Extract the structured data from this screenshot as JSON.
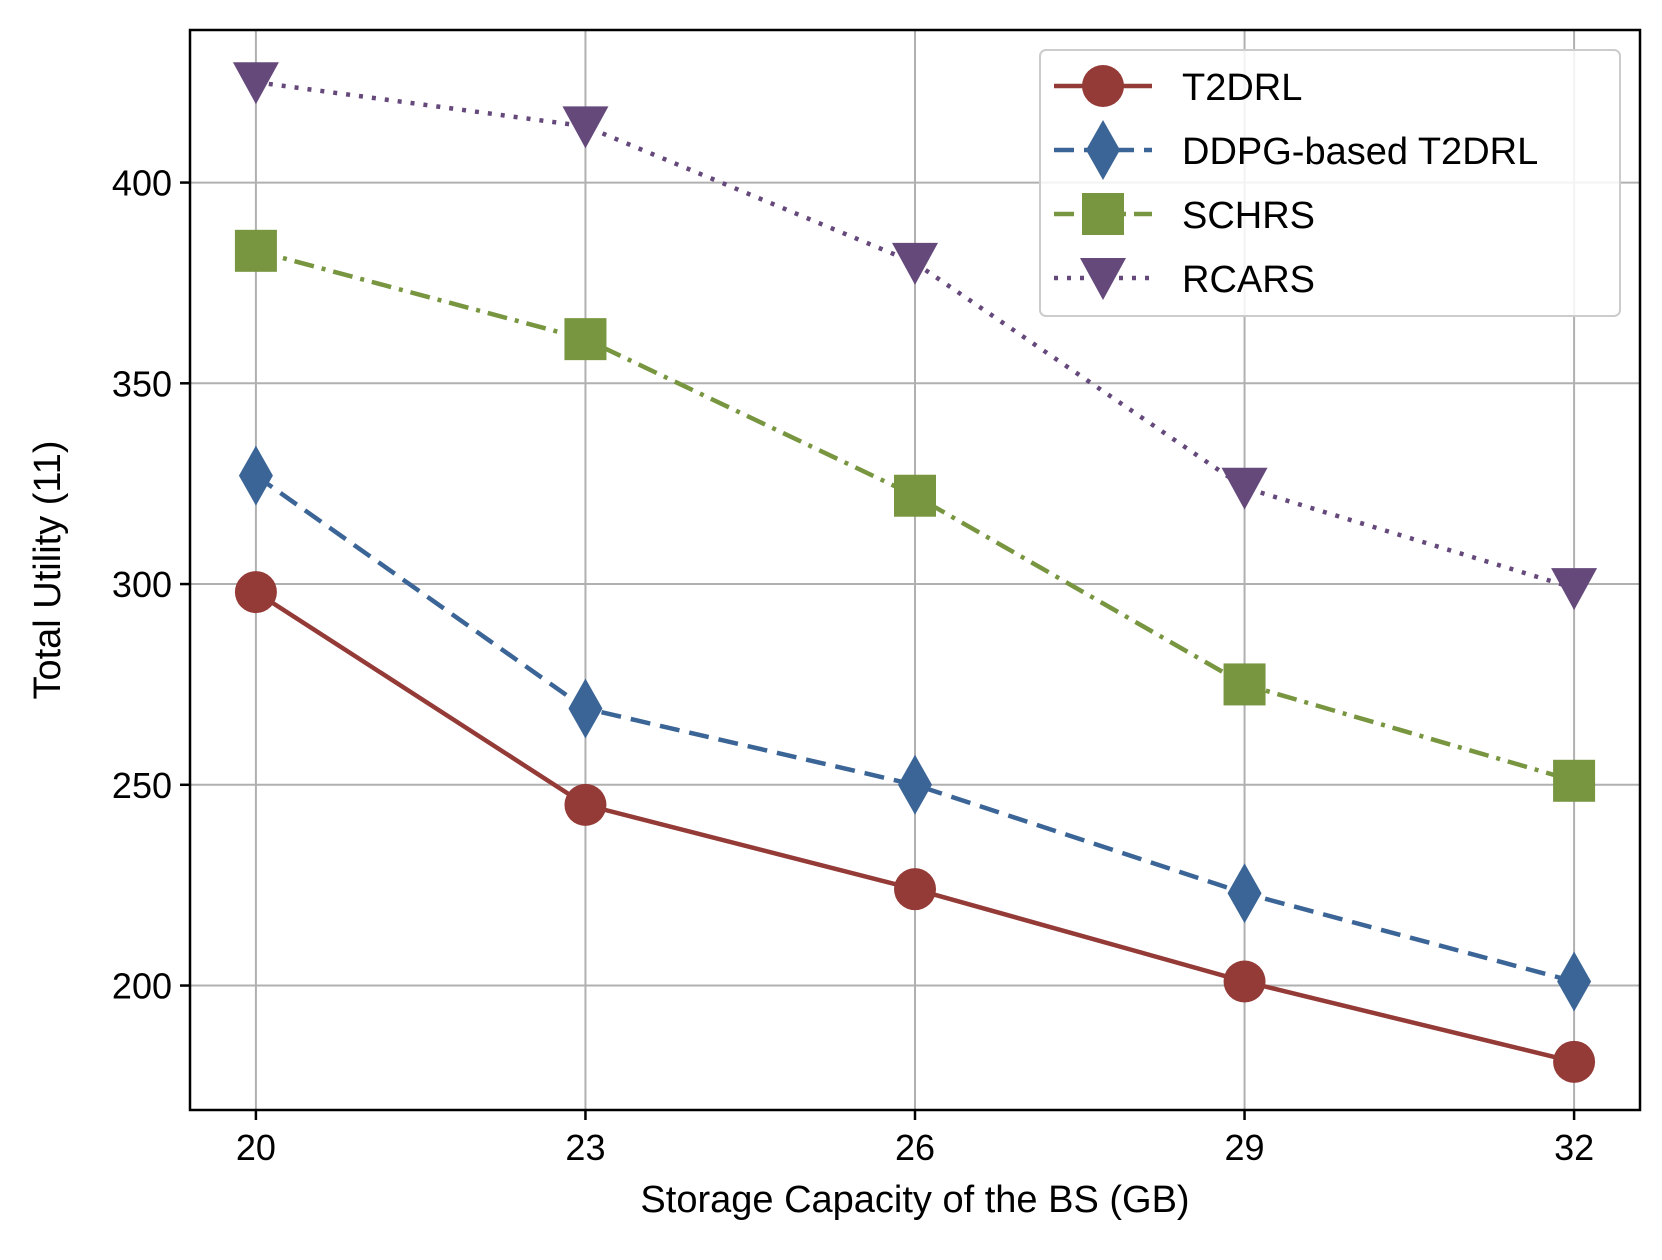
{
  "chart_data": {
    "type": "line",
    "xlabel": "Storage Capacity of the BS (GB)",
    "ylabel": "Total Utility (11)",
    "x": [
      20,
      23,
      26,
      29,
      32
    ],
    "xticks": [
      "20",
      "23",
      "26",
      "29",
      "32"
    ],
    "yticks": [
      "200",
      "250",
      "300",
      "350",
      "400"
    ],
    "ytick_values": [
      200,
      250,
      300,
      350,
      400
    ],
    "xlim": [
      19.4,
      32.6
    ],
    "ylim": [
      169,
      438
    ],
    "grid": true,
    "legend_position": "top-right",
    "series": [
      {
        "name": "T2DRL",
        "values": [
          298,
          245,
          224,
          201,
          181
        ],
        "color": "#943a37",
        "marker": "circle",
        "dash": "solid"
      },
      {
        "name": "DDPG-based T2DRL",
        "values": [
          327,
          269,
          250,
          223,
          201
        ],
        "color": "#3b6596",
        "marker": "diamond",
        "dash": "dashed"
      },
      {
        "name": "SCHRS",
        "values": [
          383,
          361,
          322,
          275,
          251
        ],
        "color": "#789540",
        "marker": "square",
        "dash": "dashdot"
      },
      {
        "name": "RCARS",
        "values": [
          425,
          414,
          380,
          324,
          299
        ],
        "color": "#65497b",
        "marker": "triangle-down",
        "dash": "dotted"
      }
    ]
  }
}
